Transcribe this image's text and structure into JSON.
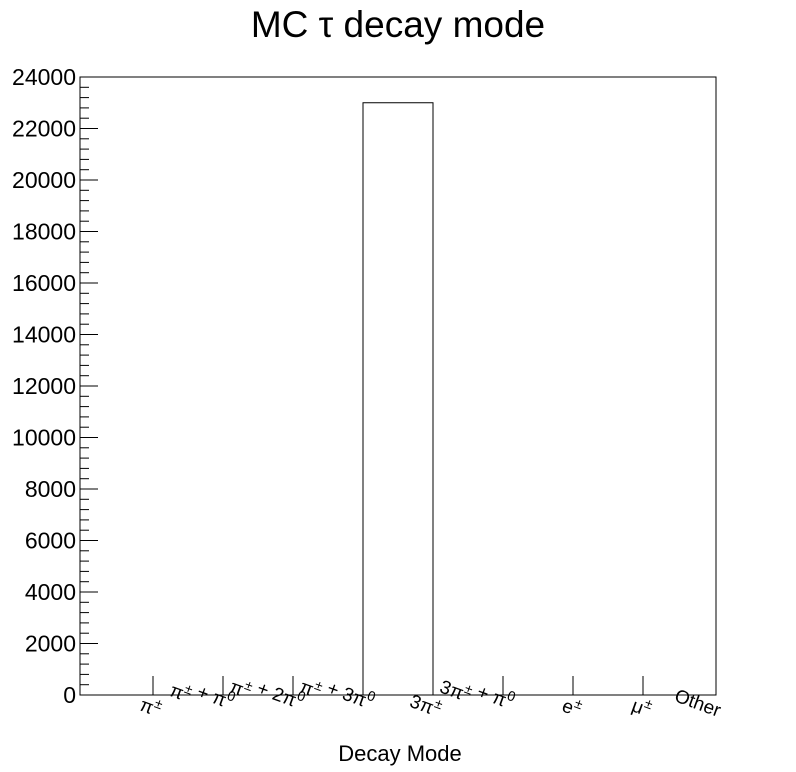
{
  "chart_data": {
    "type": "bar",
    "title": "MC τ decay mode",
    "xlabel": "Decay Mode",
    "ylabel": "",
    "ylim": [
      0,
      24000
    ],
    "yticks": [
      0,
      2000,
      4000,
      6000,
      8000,
      10000,
      12000,
      14000,
      16000,
      18000,
      20000,
      22000,
      24000
    ],
    "ytick_labels": [
      "0",
      "2000",
      "4000",
      "6000",
      "8000",
      "10000",
      "12000",
      "14000",
      "16000",
      "18000",
      "20000",
      "22000",
      "24000"
    ],
    "categories": [
      "π±",
      "π± + π0",
      "π± + 2π0",
      "π± + 3π0",
      "3π±",
      "3π± + π0",
      "e±",
      "μ±",
      "Other"
    ],
    "category_labels": [
      {
        "base": "π",
        "parts": [
          [
            "π",
            "sup",
            "±"
          ]
        ]
      },
      {
        "parts": [
          [
            "π",
            "sup",
            "±"
          ],
          [
            " + π",
            "sup",
            "0"
          ]
        ]
      },
      {
        "parts": [
          [
            "π",
            "sup",
            "±"
          ],
          [
            " + 2π",
            "sup",
            "0"
          ]
        ]
      },
      {
        "parts": [
          [
            "π",
            "sup",
            "±"
          ],
          [
            " + 3π",
            "sup",
            "0"
          ]
        ]
      },
      {
        "parts": [
          [
            "3π",
            "sup",
            "±"
          ]
        ]
      },
      {
        "parts": [
          [
            "3π",
            "sup",
            "±"
          ],
          [
            " + π",
            "sup",
            "0"
          ]
        ]
      },
      {
        "parts": [
          [
            "e",
            "sup",
            "±"
          ]
        ]
      },
      {
        "parts": [
          [
            "μ",
            "sup",
            "±"
          ]
        ]
      },
      {
        "parts": [
          [
            "Other",
            "",
            ""
          ]
        ]
      }
    ],
    "values": [
      0,
      0,
      0,
      0,
      23000,
      0,
      0,
      0,
      0
    ],
    "grid": false,
    "legend": "none",
    "colors": {
      "bar_fill": "#ffffff",
      "bar_stroke": "#000000",
      "axis": "#000000"
    }
  }
}
